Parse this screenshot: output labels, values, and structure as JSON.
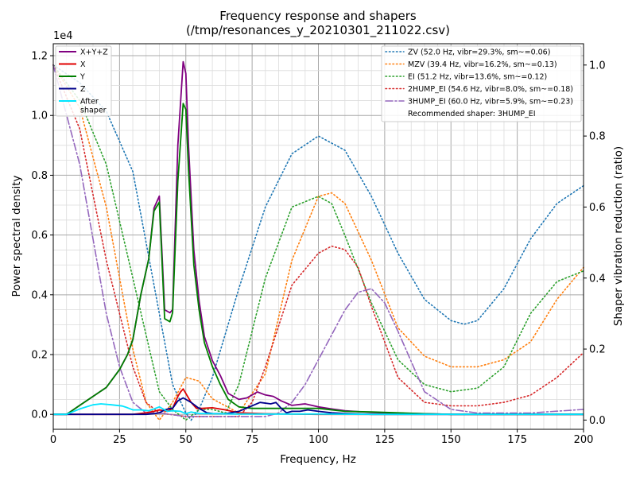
{
  "chart_data": {
    "type": "line",
    "title": "Frequency response and shapers",
    "subtitle": "(/tmp/resonances_y_20210301_211022.csv)",
    "xlabel": "Frequency, Hz",
    "ylabel": "Power spectral density",
    "y2label": "Shaper vibration reduction (ratio)",
    "y_multiplier": "1e4",
    "xlim": [
      0,
      200
    ],
    "ylim": [
      -0.05,
      1.24
    ],
    "y2lim": [
      -0.026,
      1.06
    ],
    "x_ticks": [
      0,
      25,
      50,
      75,
      100,
      125,
      150,
      175,
      200
    ],
    "y_ticks": [
      0.0,
      0.2,
      0.4,
      0.6,
      0.8,
      1.0,
      1.2
    ],
    "y_tick_labels": [
      "0.0",
      "0.2",
      "0.4",
      "0.6",
      "0.8",
      "1.0",
      "1.2"
    ],
    "y2_ticks": [
      0.0,
      0.2,
      0.4,
      0.6,
      0.8,
      1.0
    ],
    "y2_tick_labels": [
      "0.0",
      "0.2",
      "0.4",
      "0.6",
      "0.8",
      "1.0"
    ],
    "grid": true,
    "left_legend_placement": "top-left",
    "right_legend_placement": "top-right",
    "psd_series": [
      {
        "name": "X+Y+Z",
        "color": "#800080",
        "style": "solid",
        "x": [
          0,
          5,
          10,
          15,
          20,
          25,
          28,
          30,
          33,
          36,
          38,
          40,
          42,
          44,
          45,
          47,
          49,
          50,
          51,
          53,
          55,
          57,
          60,
          63,
          66,
          70,
          73,
          77,
          80,
          83,
          86,
          90,
          95,
          100,
          105,
          110,
          120,
          130,
          140,
          150,
          160,
          170,
          180,
          190,
          200
        ],
        "y": [
          0,
          0,
          0.03,
          0.06,
          0.09,
          0.15,
          0.2,
          0.25,
          0.4,
          0.52,
          0.69,
          0.73,
          0.35,
          0.34,
          0.35,
          0.9,
          1.18,
          1.14,
          0.9,
          0.55,
          0.38,
          0.26,
          0.18,
          0.13,
          0.07,
          0.05,
          0.055,
          0.075,
          0.065,
          0.06,
          0.045,
          0.03,
          0.035,
          0.025,
          0.018,
          0.012,
          0.006,
          0.004,
          0.002,
          0.0,
          0.0,
          0.0,
          0.0,
          0.0,
          0.0
        ]
      },
      {
        "name": "X",
        "color": "#e00000",
        "style": "solid",
        "x": [
          0,
          5,
          10,
          20,
          30,
          35,
          38,
          40,
          43,
          45,
          47,
          48,
          49,
          50,
          52,
          54,
          56,
          60,
          65,
          70,
          80,
          100,
          130,
          160,
          200
        ],
        "y": [
          0,
          0,
          0,
          0,
          0,
          0.005,
          0.01,
          0.015,
          0.01,
          0.02,
          0.06,
          0.075,
          0.085,
          0.07,
          0.04,
          0.02,
          0.02,
          0.022,
          0.015,
          0.005,
          0.002,
          0.0,
          0.0,
          0.0,
          0.0
        ]
      },
      {
        "name": "Y",
        "color": "#008000",
        "style": "solid",
        "x": [
          0,
          5,
          10,
          15,
          20,
          25,
          28,
          30,
          33,
          36,
          38,
          40,
          42,
          44,
          45,
          47,
          49,
          50,
          51,
          53,
          55,
          57,
          60,
          63,
          66,
          70,
          75,
          80,
          85,
          90,
          100,
          110,
          120,
          130,
          140,
          150,
          200
        ],
        "y": [
          0,
          0,
          0.03,
          0.06,
          0.09,
          0.15,
          0.2,
          0.25,
          0.4,
          0.52,
          0.68,
          0.71,
          0.32,
          0.31,
          0.34,
          0.78,
          1.04,
          1.02,
          0.82,
          0.5,
          0.35,
          0.24,
          0.16,
          0.1,
          0.05,
          0.025,
          0.02,
          0.02,
          0.02,
          0.02,
          0.02,
          0.01,
          0.008,
          0.005,
          0.002,
          0.0,
          0.0
        ]
      },
      {
        "name": "Z",
        "color": "#00008b",
        "style": "solid",
        "x": [
          0,
          5,
          10,
          20,
          30,
          35,
          38,
          40,
          42,
          44,
          45,
          47,
          49,
          50,
          52,
          55,
          58,
          60,
          65,
          70,
          74,
          78,
          82,
          84,
          86,
          88,
          90,
          93,
          96,
          100,
          105,
          110,
          120,
          130,
          200
        ],
        "y": [
          0,
          0,
          0,
          0,
          0,
          0,
          0.002,
          0.005,
          0.015,
          0.02,
          0.02,
          0.045,
          0.055,
          0.05,
          0.04,
          0.02,
          0.005,
          0.003,
          0.002,
          0.01,
          0.025,
          0.04,
          0.035,
          0.04,
          0.02,
          0.005,
          0.01,
          0.01,
          0.015,
          0.01,
          0.005,
          0.003,
          0.0,
          0.0,
          0.0
        ]
      },
      {
        "name": "After\nshaper",
        "color": "#00e5ff",
        "style": "solid",
        "x": [
          0,
          5,
          10,
          15,
          18,
          22,
          26,
          28,
          30,
          33,
          36,
          38,
          40,
          43,
          45,
          48,
          50,
          52,
          55,
          60,
          70,
          80,
          90,
          100,
          120,
          150,
          200
        ],
        "y": [
          0,
          0,
          0.018,
          0.032,
          0.035,
          0.032,
          0.028,
          0.022,
          0.015,
          0.015,
          0.012,
          0.018,
          0.025,
          0.01,
          0.012,
          0.01,
          0.002,
          0.008,
          0.003,
          0.002,
          0.001,
          0.001,
          0.001,
          0.001,
          0.0,
          0.0,
          0.0
        ]
      }
    ],
    "shaper_series": [
      {
        "name": "ZV (52.0 Hz, vibr=29.3%, sm~=0.06)",
        "color": "#1f77b4",
        "style": "dotted",
        "x": [
          0,
          10,
          20,
          30,
          40,
          45,
          50,
          52,
          55,
          60,
          70,
          80,
          90,
          100,
          110,
          120,
          130,
          140,
          150,
          155,
          160,
          170,
          180,
          190,
          200
        ],
        "y": [
          1.0,
          0.95,
          0.87,
          0.7,
          0.3,
          0.1,
          0.02,
          0.0,
          0.03,
          0.12,
          0.37,
          0.6,
          0.75,
          0.8,
          0.76,
          0.63,
          0.47,
          0.34,
          0.28,
          0.27,
          0.28,
          0.37,
          0.51,
          0.61,
          0.66
        ]
      },
      {
        "name": "MZV (39.4 Hz, vibr=16.2%, sm~=0.13)",
        "color": "#ff7f0e",
        "style": "dotted",
        "x": [
          0,
          10,
          20,
          30,
          35,
          40,
          45,
          50,
          55,
          60,
          70,
          80,
          90,
          100,
          105,
          110,
          120,
          130,
          140,
          150,
          160,
          170,
          180,
          190,
          200
        ],
        "y": [
          1.0,
          0.88,
          0.6,
          0.2,
          0.05,
          0.0,
          0.05,
          0.12,
          0.11,
          0.06,
          0.02,
          0.13,
          0.45,
          0.63,
          0.64,
          0.61,
          0.45,
          0.26,
          0.18,
          0.15,
          0.15,
          0.17,
          0.22,
          0.34,
          0.43
        ]
      },
      {
        "name": "EI (51.2 Hz, vibr=13.6%, sm~=0.12)",
        "color": "#2ca02c",
        "style": "dotted",
        "x": [
          0,
          10,
          20,
          30,
          40,
          45,
          50,
          55,
          60,
          65,
          70,
          80,
          90,
          100,
          105,
          110,
          120,
          130,
          140,
          150,
          160,
          170,
          180,
          190,
          200
        ],
        "y": [
          1.0,
          0.9,
          0.72,
          0.4,
          0.08,
          0.03,
          0.0,
          0.03,
          0.03,
          0.02,
          0.1,
          0.4,
          0.6,
          0.63,
          0.61,
          0.52,
          0.33,
          0.17,
          0.1,
          0.08,
          0.09,
          0.15,
          0.3,
          0.39,
          0.42
        ]
      },
      {
        "name": "2HUMP_EI (54.6 Hz, vibr=8.0%, sm~=0.18)",
        "color": "#d62728",
        "style": "dotted",
        "x": [
          0,
          10,
          20,
          30,
          35,
          40,
          50,
          60,
          70,
          75,
          80,
          90,
          100,
          105,
          110,
          115,
          120,
          130,
          140,
          150,
          160,
          170,
          180,
          190,
          200
        ],
        "y": [
          1.0,
          0.82,
          0.45,
          0.15,
          0.05,
          0.02,
          0.01,
          0.01,
          0.01,
          0.05,
          0.15,
          0.38,
          0.47,
          0.49,
          0.48,
          0.43,
          0.32,
          0.12,
          0.05,
          0.04,
          0.04,
          0.05,
          0.07,
          0.12,
          0.19
        ]
      },
      {
        "name": "3HUMP_EI (60.0 Hz, vibr=5.9%, sm~=0.23)",
        "color": "#9467bd",
        "style": "dashdot",
        "x": [
          0,
          10,
          20,
          25,
          30,
          35,
          40,
          50,
          60,
          70,
          80,
          85,
          90,
          95,
          100,
          105,
          110,
          115,
          120,
          125,
          130,
          140,
          150,
          160,
          170,
          180,
          190,
          200
        ],
        "y": [
          1.0,
          0.72,
          0.3,
          0.15,
          0.05,
          0.02,
          0.02,
          0.01,
          0.01,
          0.01,
          0.01,
          0.02,
          0.05,
          0.1,
          0.17,
          0.24,
          0.31,
          0.36,
          0.37,
          0.33,
          0.25,
          0.08,
          0.03,
          0.02,
          0.02,
          0.02,
          0.025,
          0.03
        ]
      }
    ],
    "recommendation": "Recommended shaper: 3HUMP_EI"
  }
}
